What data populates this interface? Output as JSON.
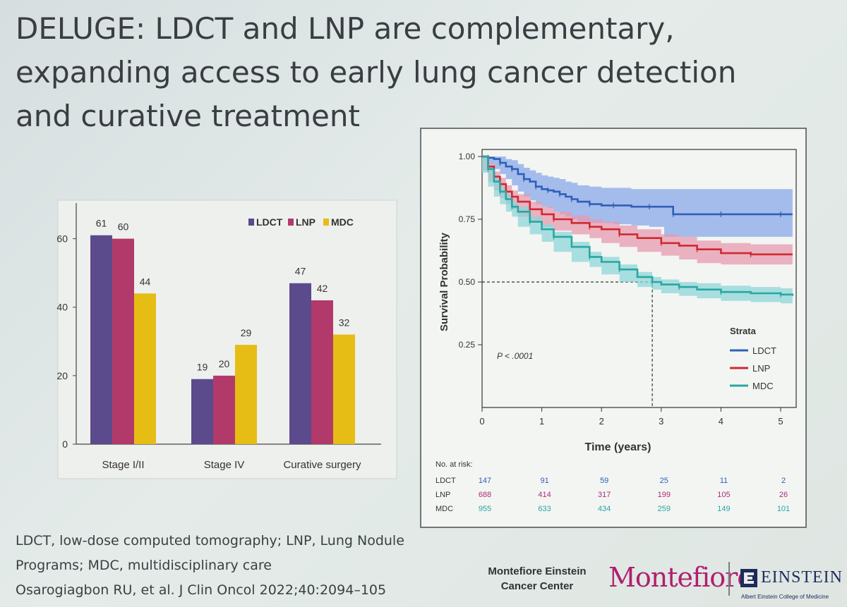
{
  "slide": {
    "title": "DELUGE: LDCT and LNP are complementary, expanding access to early lung cancer detection and curative treatment",
    "footnote_lines": [
      "LDCT, low-dose computed tomography; LNP, Lung Nodule",
      "Programs; MDC, multidisciplinary care",
      "Osarogiagbon RU, et al. J Clin Oncol 2022;40:2094–105"
    ],
    "center_name": [
      "Montefiore Einstein",
      "Cancer Center"
    ],
    "logo_montefiore": "Montefiore",
    "logo_einstein": "EINSTEIN",
    "logo_einstein_sub": "Albert Einstein College of Medicine"
  },
  "colors": {
    "LDCT_bar": "#5b4a8c",
    "LNP_bar": "#b23a6a",
    "MDC_bar": "#e6bd14",
    "LDCT_line": "#2f5fb8",
    "LNP_line": "#cf2a2f",
    "MDC_line": "#2aa6a2",
    "LDCT_band": "#8aa8ea",
    "LNP_band": "#e79ab0",
    "MDC_band": "#8fd6d8"
  },
  "chart_data": [
    {
      "type": "bar",
      "categories": [
        "Stage I/II",
        "Stage IV",
        "Curative surgery"
      ],
      "series": [
        {
          "name": "LDCT",
          "values": [
            61,
            19,
            47
          ]
        },
        {
          "name": "LNP",
          "values": [
            60,
            20,
            42
          ]
        },
        {
          "name": "MDC",
          "values": [
            44,
            29,
            32
          ]
        }
      ],
      "yticks": [
        "0",
        "20",
        "40",
        "60"
      ],
      "ylim": [
        0,
        70
      ],
      "legend": "top-right"
    },
    {
      "type": "line",
      "xlabel": "Time (years)",
      "ylabel": "Survival Probability",
      "xticks": [
        "0",
        "1",
        "2",
        "3",
        "4",
        "5"
      ],
      "yticks": [
        "0.25",
        "0.50",
        "0.75",
        "1.00"
      ],
      "xlim": [
        0,
        5.2
      ],
      "ylim": [
        0,
        1.02
      ],
      "annotation": "P < .0001",
      "legend_title": "Strata",
      "legend": "bottom-right",
      "median_marker": {
        "x": 2.85,
        "y": 0.5
      },
      "series": [
        {
          "name": "LDCT",
          "x": [
            0,
            0.1,
            0.2,
            0.3,
            0.4,
            0.5,
            0.6,
            0.7,
            0.8,
            0.9,
            1.0,
            1.1,
            1.2,
            1.3,
            1.4,
            1.5,
            1.6,
            1.8,
            2.0,
            2.2,
            2.5,
            2.8,
            3.05,
            3.2,
            3.5,
            4.0,
            4.5,
            5.0,
            5.2
          ],
          "y": [
            1.0,
            0.995,
            0.99,
            0.975,
            0.96,
            0.95,
            0.93,
            0.91,
            0.9,
            0.88,
            0.87,
            0.865,
            0.86,
            0.85,
            0.84,
            0.83,
            0.82,
            0.81,
            0.805,
            0.805,
            0.8,
            0.8,
            0.8,
            0.77,
            0.77,
            0.77,
            0.77,
            0.77,
            0.77
          ],
          "lower": [
            1.0,
            0.985,
            0.97,
            0.95,
            0.93,
            0.91,
            0.885,
            0.86,
            0.84,
            0.825,
            0.81,
            0.8,
            0.795,
            0.78,
            0.77,
            0.76,
            0.75,
            0.74,
            0.735,
            0.735,
            0.73,
            0.725,
            0.72,
            0.68,
            0.68,
            0.68,
            0.68,
            0.68,
            0.68
          ],
          "upper": [
            1.0,
            1.0,
            1.0,
            1.0,
            0.99,
            0.985,
            0.97,
            0.955,
            0.945,
            0.935,
            0.925,
            0.92,
            0.915,
            0.91,
            0.9,
            0.895,
            0.885,
            0.88,
            0.875,
            0.875,
            0.87,
            0.87,
            0.87,
            0.87,
            0.87,
            0.87,
            0.87,
            0.87,
            0.87
          ]
        },
        {
          "name": "LNP",
          "x": [
            0,
            0.1,
            0.2,
            0.3,
            0.4,
            0.5,
            0.6,
            0.8,
            1.0,
            1.2,
            1.5,
            1.8,
            2.0,
            2.3,
            2.6,
            3.0,
            3.3,
            3.6,
            4.0,
            4.5,
            5.0,
            5.2
          ],
          "y": [
            1.0,
            0.96,
            0.92,
            0.89,
            0.86,
            0.84,
            0.82,
            0.79,
            0.77,
            0.75,
            0.735,
            0.72,
            0.71,
            0.69,
            0.675,
            0.655,
            0.645,
            0.63,
            0.615,
            0.61,
            0.61,
            0.61
          ],
          "lower": [
            1.0,
            0.945,
            0.9,
            0.865,
            0.835,
            0.81,
            0.79,
            0.76,
            0.74,
            0.72,
            0.705,
            0.69,
            0.675,
            0.655,
            0.64,
            0.62,
            0.605,
            0.59,
            0.575,
            0.57,
            0.57,
            0.57
          ],
          "upper": [
            1.0,
            0.975,
            0.94,
            0.915,
            0.885,
            0.865,
            0.85,
            0.82,
            0.8,
            0.78,
            0.765,
            0.75,
            0.74,
            0.725,
            0.71,
            0.69,
            0.68,
            0.665,
            0.655,
            0.65,
            0.65,
            0.65
          ]
        },
        {
          "name": "MDC",
          "x": [
            0,
            0.1,
            0.2,
            0.3,
            0.4,
            0.5,
            0.6,
            0.8,
            1.0,
            1.2,
            1.5,
            1.8,
            2.0,
            2.3,
            2.6,
            2.85,
            3.0,
            3.3,
            3.6,
            4.0,
            4.5,
            5.0,
            5.2
          ],
          "y": [
            1.0,
            0.95,
            0.9,
            0.86,
            0.83,
            0.8,
            0.78,
            0.74,
            0.71,
            0.68,
            0.64,
            0.6,
            0.58,
            0.55,
            0.52,
            0.5,
            0.49,
            0.48,
            0.47,
            0.46,
            0.455,
            0.45,
            0.445
          ],
          "lower": [
            1.0,
            0.935,
            0.88,
            0.84,
            0.81,
            0.78,
            0.76,
            0.72,
            0.69,
            0.66,
            0.62,
            0.58,
            0.56,
            0.53,
            0.5,
            0.48,
            0.47,
            0.455,
            0.445,
            0.435,
            0.425,
            0.42,
            0.415
          ],
          "upper": [
            1.0,
            0.965,
            0.92,
            0.88,
            0.85,
            0.82,
            0.8,
            0.76,
            0.73,
            0.7,
            0.66,
            0.62,
            0.6,
            0.57,
            0.54,
            0.52,
            0.51,
            0.5,
            0.495,
            0.485,
            0.48,
            0.475,
            0.47
          ]
        }
      ],
      "risk_table": {
        "header": "No. at risk:",
        "times": [
          "0",
          "1",
          "2",
          "3",
          "4",
          "5"
        ],
        "rows": [
          {
            "name": "LDCT",
            "values": [
              "147",
              "91",
              "59",
              "25",
              "11",
              "2"
            ]
          },
          {
            "name": "LNP",
            "values": [
              "688",
              "414",
              "317",
              "199",
              "105",
              "26"
            ]
          },
          {
            "name": "MDC",
            "values": [
              "955",
              "633",
              "434",
              "259",
              "149",
              "101"
            ]
          }
        ]
      }
    }
  ]
}
